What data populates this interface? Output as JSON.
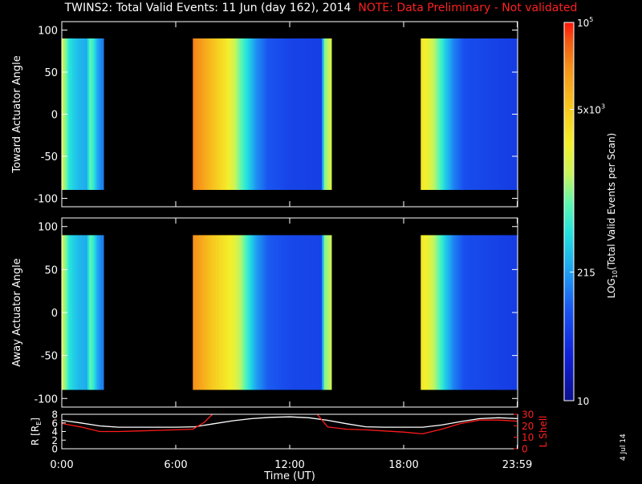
{
  "title": "TWINS2: Total Valid Events: 11 Jun (day 162), 2014",
  "note": "NOTE: Data Preliminary - Not validated",
  "datestamp": "4 Jul 14",
  "chart_data": [
    {
      "type": "heatmap",
      "panel": "toward",
      "ylabel": "Toward Actuator Angle",
      "ylim": [
        -110,
        110
      ],
      "yticks": [
        -100,
        -50,
        0,
        50,
        100
      ],
      "xlim": [
        0,
        24
      ],
      "data_ylim": [
        -90,
        90
      ],
      "blocks": [
        {
          "t0": 0.0,
          "t1": 2.2,
          "profile": [
            [
              0.0,
              0.62
            ],
            [
              0.15,
              0.55
            ],
            [
              0.35,
              0.45
            ],
            [
              0.55,
              0.42
            ],
            [
              0.85,
              0.38
            ],
            [
              1.25,
              0.36
            ],
            [
              1.45,
              0.52
            ],
            [
              1.6,
              0.48
            ],
            [
              1.85,
              0.35
            ],
            [
              2.05,
              0.3
            ],
            [
              2.2,
              0.3
            ]
          ]
        },
        {
          "t0": 6.9,
          "t1": 14.2,
          "profile": [
            [
              6.9,
              0.9
            ],
            [
              7.3,
              0.86
            ],
            [
              7.8,
              0.8
            ],
            [
              8.2,
              0.75
            ],
            [
              8.6,
              0.7
            ],
            [
              9.0,
              0.62
            ],
            [
              9.4,
              0.52
            ],
            [
              9.8,
              0.42
            ],
            [
              10.2,
              0.32
            ],
            [
              10.8,
              0.24
            ],
            [
              12.0,
              0.2
            ],
            [
              13.6,
              0.19
            ],
            [
              13.8,
              0.55
            ],
            [
              14.1,
              0.62
            ],
            [
              14.2,
              0.35
            ]
          ]
        },
        {
          "t0": 18.9,
          "t1": 24.0,
          "profile": [
            [
              18.9,
              0.7
            ],
            [
              19.3,
              0.65
            ],
            [
              19.6,
              0.58
            ],
            [
              19.9,
              0.5
            ],
            [
              20.2,
              0.4
            ],
            [
              20.6,
              0.3
            ],
            [
              21.2,
              0.22
            ],
            [
              24.0,
              0.18
            ]
          ]
        }
      ]
    },
    {
      "type": "heatmap",
      "panel": "away",
      "ylabel": "Away Actuator Angle",
      "ylim": [
        -110,
        110
      ],
      "yticks": [
        -100,
        -50,
        0,
        50,
        100
      ],
      "xlim": [
        0,
        24
      ],
      "data_ylim": [
        -90,
        90
      ],
      "blocks": [
        {
          "t0": 0.0,
          "t1": 2.2,
          "profile": [
            [
              0.0,
              0.62
            ],
            [
              0.15,
              0.55
            ],
            [
              0.35,
              0.45
            ],
            [
              0.55,
              0.42
            ],
            [
              0.85,
              0.38
            ],
            [
              1.25,
              0.36
            ],
            [
              1.45,
              0.52
            ],
            [
              1.6,
              0.48
            ],
            [
              1.85,
              0.35
            ],
            [
              2.05,
              0.3
            ],
            [
              2.2,
              0.3
            ]
          ]
        },
        {
          "t0": 6.9,
          "t1": 14.2,
          "profile": [
            [
              6.9,
              0.88
            ],
            [
              7.3,
              0.84
            ],
            [
              7.8,
              0.78
            ],
            [
              8.2,
              0.74
            ],
            [
              8.6,
              0.7
            ],
            [
              9.0,
              0.66
            ],
            [
              9.4,
              0.58
            ],
            [
              9.8,
              0.46
            ],
            [
              10.2,
              0.34
            ],
            [
              10.8,
              0.25
            ],
            [
              12.0,
              0.21
            ],
            [
              13.6,
              0.2
            ],
            [
              13.8,
              0.55
            ],
            [
              14.1,
              0.6
            ],
            [
              14.2,
              0.35
            ]
          ]
        },
        {
          "t0": 18.9,
          "t1": 24.0,
          "profile": [
            [
              18.9,
              0.7
            ],
            [
              19.3,
              0.65
            ],
            [
              19.6,
              0.58
            ],
            [
              19.9,
              0.5
            ],
            [
              20.2,
              0.4
            ],
            [
              20.6,
              0.3
            ],
            [
              21.2,
              0.22
            ],
            [
              24.0,
              0.18
            ]
          ]
        }
      ]
    },
    {
      "type": "line",
      "panel": "orbit",
      "xlabel": "Time (UT)",
      "xlim": [
        0,
        24
      ],
      "xtick_labels": [
        "0:00",
        "6:00",
        "12:00",
        "18:00",
        "23:59"
      ],
      "xtick_values": [
        0,
        6,
        12,
        18,
        23.98
      ],
      "ylabel_left": "R [R",
      "ylabel_left_sub": "E",
      "ylabel_left_close": "]",
      "ylim_left": [
        0,
        8
      ],
      "yticks_left": [
        0,
        2,
        4,
        6,
        8
      ],
      "ylabel_right": "L Shell",
      "ylim_right": [
        0,
        30
      ],
      "yticks_right": [
        0,
        10,
        20,
        30
      ],
      "right_axis_color": "#ff2020",
      "series": [
        {
          "axis": "left",
          "color": "#ffffff",
          "x": [
            0,
            1,
            2,
            3,
            4,
            5,
            6,
            7,
            8,
            9,
            10,
            11,
            12,
            13,
            14,
            15,
            16,
            17,
            18,
            19,
            20,
            21,
            22,
            23,
            24
          ],
          "y": [
            6.6,
            6.0,
            5.3,
            5.0,
            5.0,
            5.0,
            5.0,
            5.1,
            5.8,
            6.5,
            7.0,
            7.3,
            7.4,
            7.2,
            6.6,
            5.8,
            5.1,
            5.0,
            5.0,
            5.0,
            5.5,
            6.3,
            7.0,
            7.2,
            7.0
          ]
        },
        {
          "axis": "right",
          "color": "#ff1a1a",
          "x": [
            0,
            1,
            2,
            3,
            4,
            5,
            6,
            6.9,
            7.5,
            8.0,
            8.2
          ],
          "y": [
            22,
            19,
            15,
            15,
            15.5,
            16,
            16.5,
            17,
            23,
            31,
            34
          ]
        },
        {
          "axis": "right",
          "color": "#ff1a1a",
          "x": [
            12.8,
            13.4,
            14.0,
            15,
            16,
            17,
            18,
            19,
            20,
            21,
            22,
            23,
            24
          ],
          "y": [
            34,
            31,
            19,
            17,
            16.5,
            15.5,
            14.5,
            13,
            17,
            22,
            25,
            25,
            24
          ]
        }
      ]
    }
  ],
  "colorbar": {
    "label_pre": "LOG",
    "label_sub": "10",
    "label_post": "(Total Valid Events per Scan)",
    "tick_labels": [
      {
        "value": 0.0,
        "base": "10",
        "exp": ""
      },
      {
        "value": 0.34,
        "base": "215",
        "exp": ""
      },
      {
        "value": 0.77,
        "base": "5x10",
        "exp": "3"
      },
      {
        "value": 1.0,
        "base": "10",
        "exp": "5"
      }
    ]
  }
}
